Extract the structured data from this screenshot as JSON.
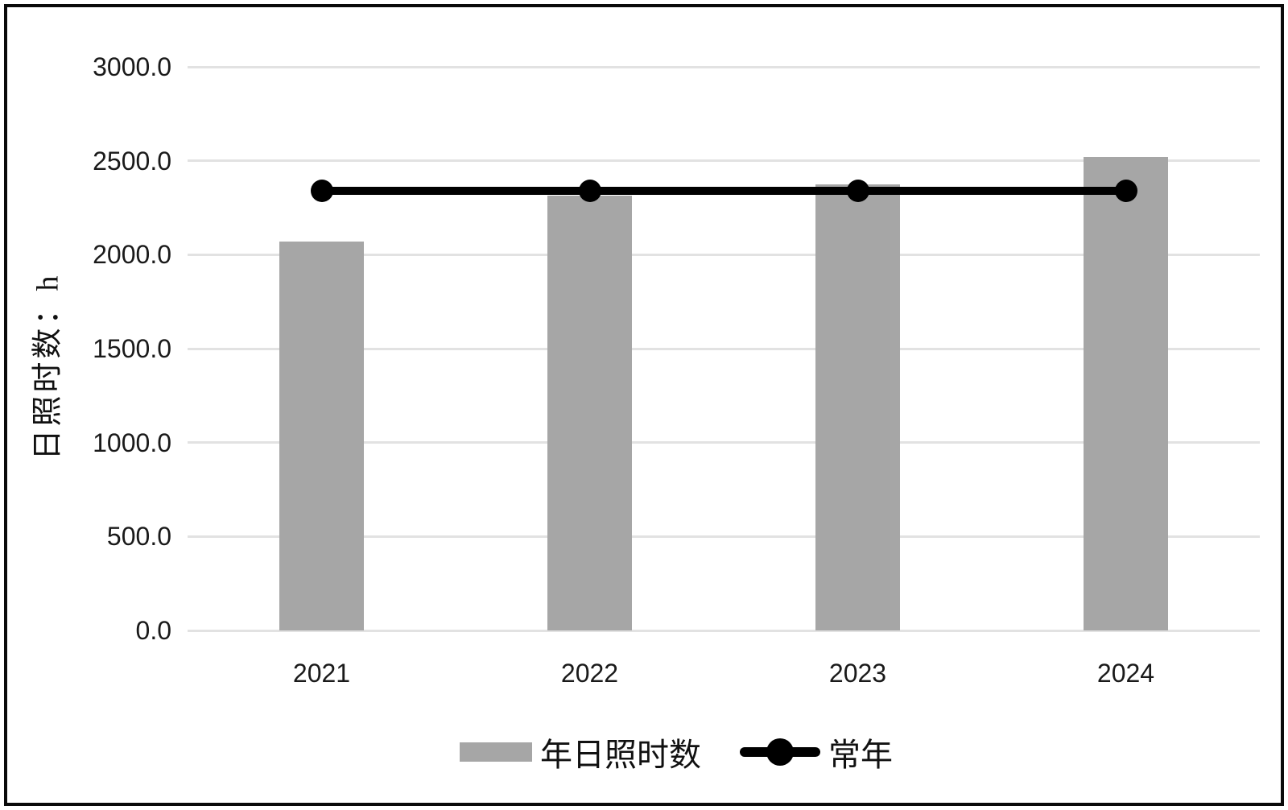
{
  "chart_data": {
    "type": "bar",
    "categories": [
      "2021",
      "2022",
      "2023",
      "2024"
    ],
    "series": [
      {
        "name": "年日照时数",
        "type": "bar",
        "values": [
          2070,
          2315,
          2375,
          2520
        ],
        "color": "#a6a6a6"
      },
      {
        "name": "常年",
        "type": "line",
        "values": [
          2340,
          2340,
          2340,
          2340
        ],
        "color": "#000000"
      }
    ],
    "title": "",
    "xlabel": "",
    "ylabel": "日照时数：h",
    "ylim": [
      0,
      3000
    ],
    "yticks": [
      {
        "value": 0,
        "label": "0.0"
      },
      {
        "value": 500,
        "label": "500.0"
      },
      {
        "value": 1000,
        "label": "1000.0"
      },
      {
        "value": 1500,
        "label": "1500.0"
      },
      {
        "value": 2000,
        "label": "2000.0"
      },
      {
        "value": 2500,
        "label": "2500.0"
      },
      {
        "value": 3000,
        "label": "3000.0"
      }
    ],
    "grid": "horizontal",
    "legend_position": "bottom"
  },
  "colors": {
    "bar": "#a6a6a6",
    "line": "#000000",
    "gridline": "#e2e2e2",
    "tick_text": "#1a1a1a",
    "frame": "#0a0a0a",
    "background": "#ffffff"
  }
}
